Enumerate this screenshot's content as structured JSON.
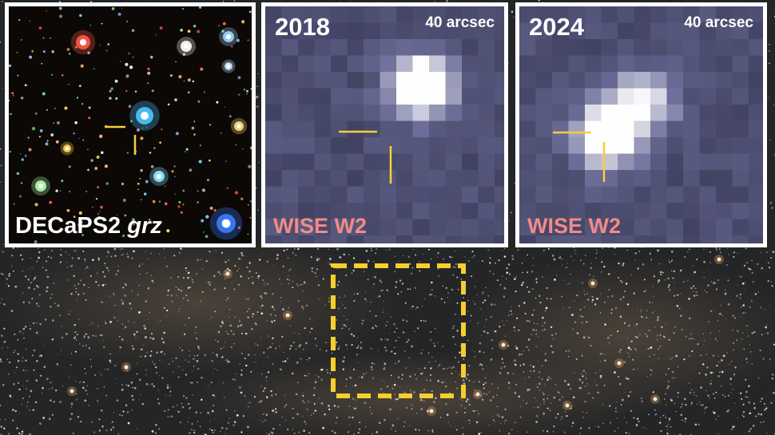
{
  "panels": [
    {
      "id": "optical",
      "survey": "DECaPS2",
      "filters": "grz"
    },
    {
      "id": "wise2018",
      "year": "2018",
      "scale": "40 arcsec",
      "band": "WISE W2"
    },
    {
      "id": "wise2024",
      "year": "2024",
      "scale": "40 arcsec",
      "band": "WISE W2"
    }
  ],
  "colors": {
    "border": "#ffffff",
    "marker": "#f5cf3a",
    "band_label": "#f28a86",
    "field_box": "#f5cf2e"
  }
}
